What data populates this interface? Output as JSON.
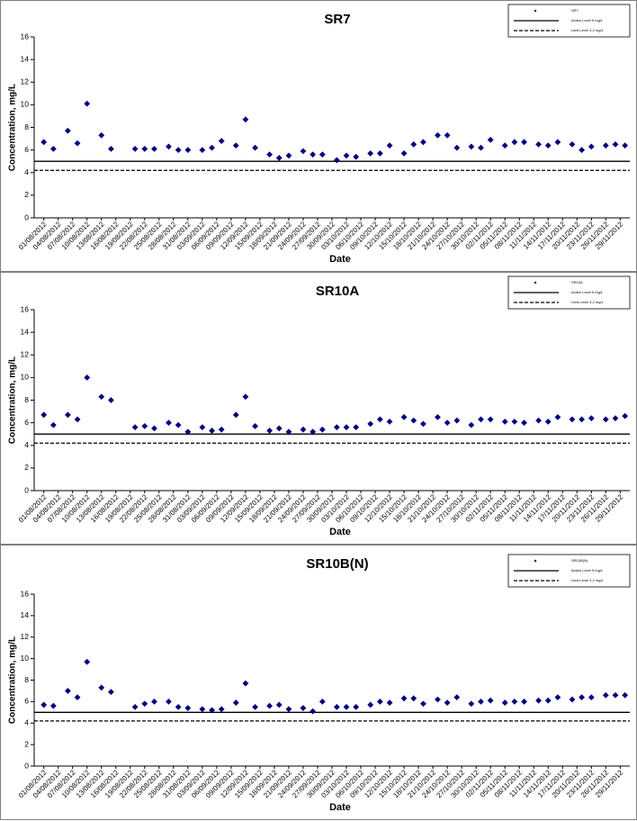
{
  "chart_data": [
    {
      "type": "scatter",
      "title": "SR7",
      "x_label": "Date",
      "y_label": "Concentration, mg/L",
      "x": [
        "01/08/2012",
        "03/08/2012",
        "06/08/2012",
        "08/08/2012",
        "10/08/2012",
        "13/08/2012",
        "15/08/2012",
        "20/08/2012",
        "22/08/2012",
        "24/08/2012",
        "27/08/2012",
        "29/08/2012",
        "31/08/2012",
        "03/09/2012",
        "05/09/2012",
        "07/09/2012",
        "10/09/2012",
        "12/09/2012",
        "14/09/2012",
        "17/09/2012",
        "19/09/2012",
        "21/09/2012",
        "24/09/2012",
        "26/09/2012",
        "28/09/2012",
        "01/10/2012",
        "03/10/2012",
        "05/10/2012",
        "08/10/2012",
        "10/10/2012",
        "12/10/2012",
        "15/10/2012",
        "17/10/2012",
        "19/10/2012",
        "22/10/2012",
        "24/10/2012",
        "26/10/2012",
        "29/10/2012",
        "31/10/2012",
        "02/11/2012",
        "05/11/2012",
        "07/11/2012",
        "09/11/2012",
        "12/11/2012",
        "14/11/2012",
        "16/11/2012",
        "19/11/2012",
        "21/11/2012",
        "23/11/2012",
        "26/11/2012",
        "28/11/2012",
        "30/11/2012"
      ],
      "xlim": [
        "30/07/2012",
        "01/12/2012"
      ],
      "xticks": [
        "01/08/2012",
        "04/08/2012",
        "07/08/2012",
        "10/08/2012",
        "13/08/2012",
        "16/08/2012",
        "19/08/2012",
        "22/08/2012",
        "25/08/2012",
        "28/08/2012",
        "31/08/2012",
        "03/09/2012",
        "06/09/2012",
        "09/09/2012",
        "12/09/2012",
        "15/09/2012",
        "18/09/2012",
        "21/09/2012",
        "24/09/2012",
        "27/09/2012",
        "30/09/2012",
        "03/10/2012",
        "06/10/2012",
        "09/10/2012",
        "12/10/2012",
        "15/10/2012",
        "18/10/2012",
        "21/10/2012",
        "24/10/2012",
        "27/10/2012",
        "30/10/2012",
        "02/11/2012",
        "05/11/2012",
        "08/11/2012",
        "11/11/2012",
        "14/11/2012",
        "17/11/2012",
        "20/11/2012",
        "23/11/2012",
        "26/11/2012",
        "29/11/2012"
      ],
      "ylim": [
        0,
        16
      ],
      "yticks": [
        0,
        2,
        4,
        6,
        8,
        10,
        12,
        14,
        16
      ],
      "series": [
        {
          "name": "SR7",
          "color": "#000080",
          "values": [
            6.7,
            6.1,
            7.7,
            6.6,
            10.1,
            7.3,
            6.1,
            6.1,
            6.1,
            6.1,
            6.3,
            6.0,
            6.0,
            6.0,
            6.2,
            6.8,
            6.4,
            8.7,
            6.2,
            5.6,
            5.3,
            5.5,
            5.9,
            5.6,
            5.6,
            5.1,
            5.5,
            5.4,
            5.7,
            5.7,
            6.4,
            5.7,
            6.5,
            6.7,
            7.3,
            7.3,
            6.2,
            6.3,
            6.2,
            6.9,
            6.4,
            6.7,
            6.7,
            6.5,
            6.4,
            6.7,
            6.5,
            6.0,
            6.3,
            6.4,
            6.5,
            6.4
          ]
        }
      ],
      "reference_lines": [
        {
          "name": "Action Level 5 mg/L",
          "value": 5,
          "color": "#000000",
          "dash": "solid"
        },
        {
          "name": "Limit Level 4.2 mg/L",
          "value": 4.2,
          "color": "#000000",
          "dash": "dashed"
        }
      ],
      "legend": "upper right"
    },
    {
      "type": "scatter",
      "title": "SR10A",
      "x_label": "Date",
      "y_label": "Concentration, mg/L",
      "x": [
        "01/08/2012",
        "03/08/2012",
        "06/08/2012",
        "08/08/2012",
        "10/08/2012",
        "13/08/2012",
        "15/08/2012",
        "20/08/2012",
        "22/08/2012",
        "24/08/2012",
        "27/08/2012",
        "29/08/2012",
        "31/08/2012",
        "03/09/2012",
        "05/09/2012",
        "07/09/2012",
        "10/09/2012",
        "12/09/2012",
        "14/09/2012",
        "17/09/2012",
        "19/09/2012",
        "21/09/2012",
        "24/09/2012",
        "26/09/2012",
        "28/09/2012",
        "01/10/2012",
        "03/10/2012",
        "05/10/2012",
        "08/10/2012",
        "10/10/2012",
        "12/10/2012",
        "15/10/2012",
        "17/10/2012",
        "19/10/2012",
        "22/10/2012",
        "24/10/2012",
        "26/10/2012",
        "29/10/2012",
        "31/10/2012",
        "02/11/2012",
        "05/11/2012",
        "07/11/2012",
        "09/11/2012",
        "12/11/2012",
        "14/11/2012",
        "16/11/2012",
        "19/11/2012",
        "21/11/2012",
        "23/11/2012",
        "26/11/2012",
        "28/11/2012",
        "30/11/2012"
      ],
      "xlim": [
        "30/07/2012",
        "01/12/2012"
      ],
      "xticks": [
        "01/08/2012",
        "04/08/2012",
        "07/08/2012",
        "10/08/2012",
        "13/08/2012",
        "16/08/2012",
        "19/08/2012",
        "22/08/2012",
        "25/08/2012",
        "28/08/2012",
        "31/08/2012",
        "03/09/2012",
        "06/09/2012",
        "09/09/2012",
        "12/09/2012",
        "15/09/2012",
        "18/09/2012",
        "21/09/2012",
        "24/09/2012",
        "27/09/2012",
        "30/09/2012",
        "03/10/2012",
        "06/10/2012",
        "09/10/2012",
        "12/10/2012",
        "15/10/2012",
        "18/10/2012",
        "21/10/2012",
        "24/10/2012",
        "27/10/2012",
        "30/10/2012",
        "02/11/2012",
        "05/11/2012",
        "08/11/2012",
        "11/11/2012",
        "14/11/2012",
        "17/11/2012",
        "20/11/2012",
        "23/11/2012",
        "26/11/2012",
        "29/11/2012"
      ],
      "ylim": [
        0,
        16
      ],
      "yticks": [
        0,
        2,
        4,
        6,
        8,
        10,
        12,
        14,
        16
      ],
      "series": [
        {
          "name": "SR10A",
          "color": "#000080",
          "values": [
            6.7,
            5.8,
            6.7,
            6.3,
            10.0,
            8.3,
            8.0,
            5.6,
            5.7,
            5.5,
            6.0,
            5.8,
            5.2,
            5.6,
            5.3,
            5.4,
            6.7,
            8.3,
            5.7,
            5.3,
            5.5,
            5.2,
            5.4,
            5.2,
            5.4,
            5.6,
            5.6,
            5.6,
            5.9,
            6.3,
            6.1,
            6.5,
            6.2,
            5.9,
            6.5,
            6.0,
            6.2,
            5.8,
            6.3,
            6.3,
            6.1,
            6.1,
            6.0,
            6.2,
            6.1,
            6.5,
            6.3,
            6.3,
            6.4,
            6.3,
            6.4,
            6.6
          ]
        }
      ],
      "reference_lines": [
        {
          "name": "Action Level 5 mg/L",
          "value": 5,
          "color": "#000000",
          "dash": "solid"
        },
        {
          "name": "Limit Level 4.2 mg/L",
          "value": 4.2,
          "color": "#000000",
          "dash": "dashed"
        }
      ],
      "legend": "upper right"
    },
    {
      "type": "scatter",
      "title": "SR10B(N)",
      "x_label": "Date",
      "y_label": "Concentration, mg/L",
      "x": [
        "01/08/2012",
        "03/08/2012",
        "06/08/2012",
        "08/08/2012",
        "10/08/2012",
        "13/08/2012",
        "15/08/2012",
        "20/08/2012",
        "22/08/2012",
        "24/08/2012",
        "27/08/2012",
        "29/08/2012",
        "31/08/2012",
        "03/09/2012",
        "05/09/2012",
        "07/09/2012",
        "10/09/2012",
        "12/09/2012",
        "14/09/2012",
        "17/09/2012",
        "19/09/2012",
        "21/09/2012",
        "24/09/2012",
        "26/09/2012",
        "28/09/2012",
        "01/10/2012",
        "03/10/2012",
        "05/10/2012",
        "08/10/2012",
        "10/10/2012",
        "12/10/2012",
        "15/10/2012",
        "17/10/2012",
        "19/10/2012",
        "22/10/2012",
        "24/10/2012",
        "26/10/2012",
        "29/10/2012",
        "31/10/2012",
        "02/11/2012",
        "05/11/2012",
        "07/11/2012",
        "09/11/2012",
        "12/11/2012",
        "14/11/2012",
        "16/11/2012",
        "19/11/2012",
        "21/11/2012",
        "23/11/2012",
        "26/11/2012",
        "28/11/2012",
        "30/11/2012"
      ],
      "xlim": [
        "30/07/2012",
        "01/12/2012"
      ],
      "xticks": [
        "01/08/2012",
        "04/08/2012",
        "07/08/2012",
        "10/08/2012",
        "13/08/2012",
        "16/08/2012",
        "19/08/2012",
        "22/08/2012",
        "25/08/2012",
        "28/08/2012",
        "31/08/2012",
        "03/09/2012",
        "06/09/2012",
        "09/09/2012",
        "12/09/2012",
        "15/09/2012",
        "18/09/2012",
        "21/09/2012",
        "24/09/2012",
        "27/09/2012",
        "30/09/2012",
        "03/10/2012",
        "06/10/2012",
        "09/10/2012",
        "12/10/2012",
        "15/10/2012",
        "18/10/2012",
        "21/10/2012",
        "24/10/2012",
        "27/10/2012",
        "30/10/2012",
        "02/11/2012",
        "05/11/2012",
        "08/11/2012",
        "11/11/2012",
        "14/11/2012",
        "17/11/2012",
        "20/11/2012",
        "23/11/2012",
        "26/11/2012",
        "29/11/2012"
      ],
      "ylim": [
        0,
        16
      ],
      "yticks": [
        0,
        2,
        4,
        6,
        8,
        10,
        12,
        14,
        16
      ],
      "series": [
        {
          "name": "SR10B(N)",
          "color": "#000080",
          "values": [
            5.7,
            5.6,
            7.0,
            6.4,
            9.7,
            7.3,
            6.9,
            5.5,
            5.8,
            6.0,
            6.0,
            5.5,
            5.4,
            5.3,
            5.2,
            5.3,
            5.9,
            7.7,
            5.5,
            5.6,
            5.7,
            5.3,
            5.4,
            5.1,
            6.0,
            5.5,
            5.5,
            5.5,
            5.7,
            6.0,
            5.9,
            6.3,
            6.3,
            5.8,
            6.2,
            5.9,
            6.4,
            5.8,
            6.0,
            6.1,
            5.9,
            6.0,
            6.0,
            6.1,
            6.1,
            6.4,
            6.2,
            6.4,
            6.4,
            6.6,
            6.6,
            6.6
          ]
        }
      ],
      "reference_lines": [
        {
          "name": "Action Level 5 mg/L",
          "value": 5,
          "color": "#000000",
          "dash": "solid"
        },
        {
          "name": "Limit Level 4.2 mg/L",
          "value": 4.2,
          "color": "#000000",
          "dash": "dashed"
        }
      ],
      "legend": "upper right"
    }
  ]
}
